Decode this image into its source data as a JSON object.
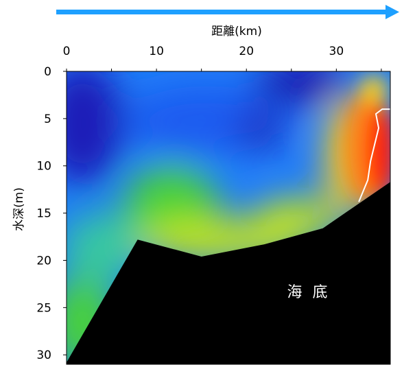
{
  "chart_data": {
    "type": "heatmap",
    "title": "",
    "xlabel": "距離(km)",
    "ylabel": "水深(m)",
    "xlim": [
      0,
      36
    ],
    "ylim": [
      0,
      31
    ],
    "x_ticks": [
      0,
      10,
      20,
      30
    ],
    "y_ticks": [
      0,
      5,
      10,
      15,
      20,
      25,
      30
    ],
    "direction_arrow": "left-to-right",
    "colormap": [
      "#1a0aa8",
      "#1e5cf0",
      "#1ea0ff",
      "#38c8a0",
      "#48d23a",
      "#c8e614",
      "#ffd21e",
      "#ff8a14",
      "#ff1e0a"
    ],
    "seabed_label": "海 底",
    "seabed_profile": {
      "distance_km": [
        0,
        7.9,
        15,
        22,
        28.5,
        36
      ],
      "depth_m": [
        30.8,
        17.8,
        19.6,
        18.3,
        16.6,
        11.7
      ]
    },
    "field_description_levels": {
      "low": "#1a0aa8",
      "high": "#ff1e0a"
    },
    "contour_line": {
      "color": "#ffffff",
      "distance_km": [
        32.5,
        33.5,
        33.8,
        34.7,
        34.4,
        35.1,
        36
      ],
      "depth_m": [
        13.8,
        11.5,
        9.5,
        6,
        4.5,
        4,
        4
      ]
    }
  }
}
